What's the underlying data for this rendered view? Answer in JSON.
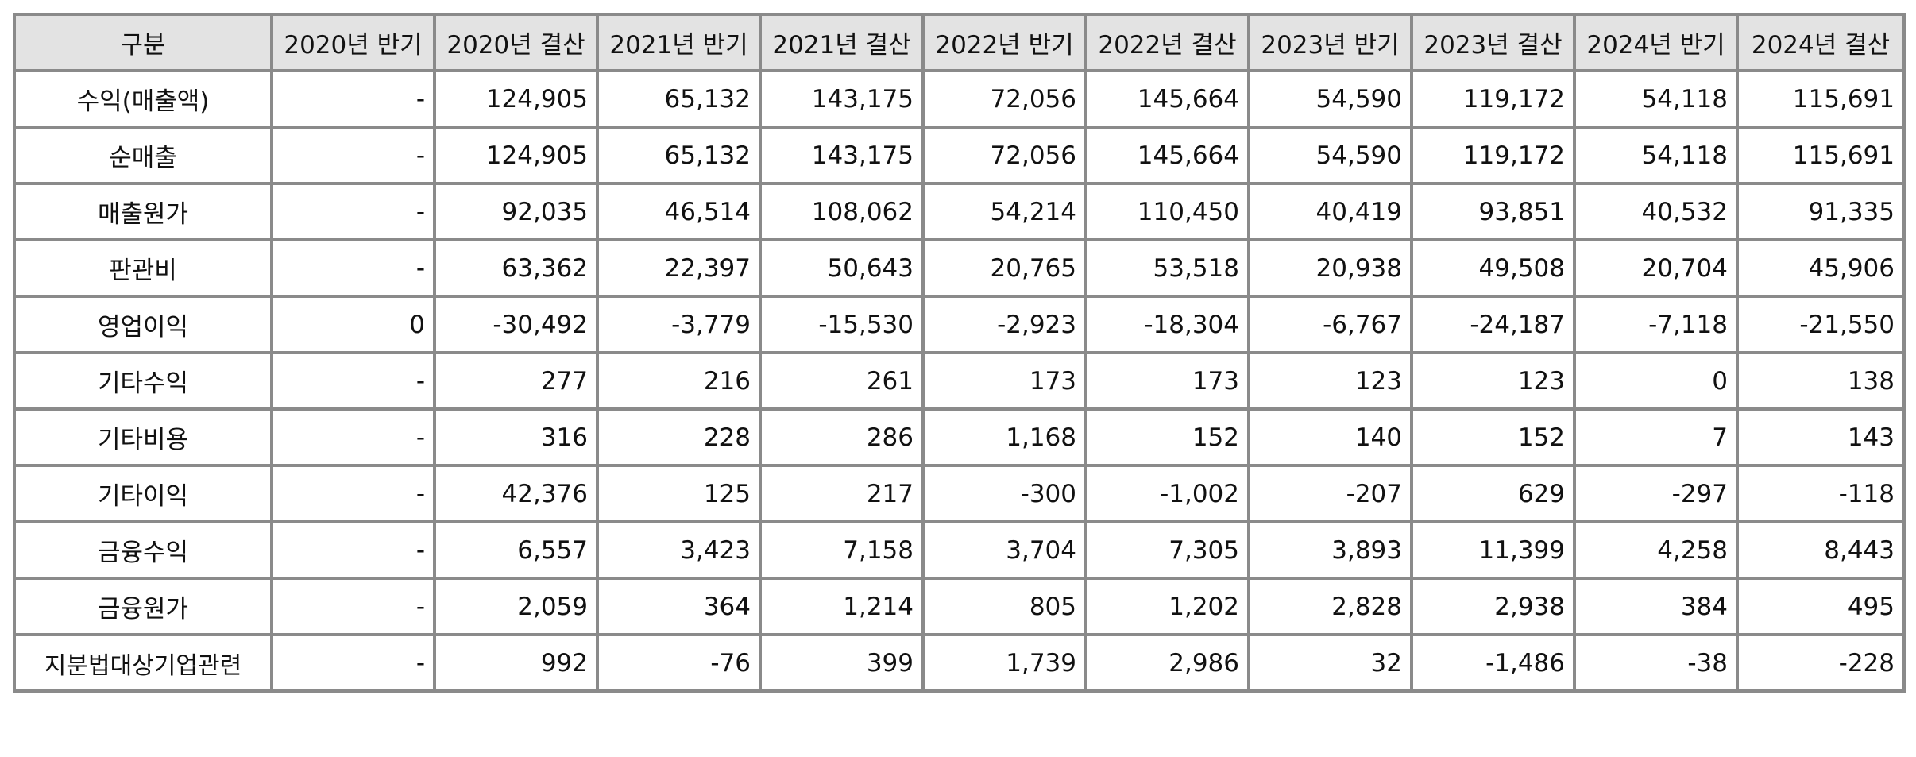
{
  "table": {
    "headers": [
      "구분",
      "2020년 반기",
      "2020년 결산",
      "2021년 반기",
      "2021년 결산",
      "2022년 반기",
      "2022년 결산",
      "2023년 반기",
      "2023년 결산",
      "2024년 반기",
      "2024년 결산"
    ],
    "rows": [
      {
        "label": "수익(매출액)",
        "values": [
          "-",
          "124,905",
          "65,132",
          "143,175",
          "72,056",
          "145,664",
          "54,590",
          "119,172",
          "54,118",
          "115,691"
        ]
      },
      {
        "label": "순매출",
        "values": [
          "-",
          "124,905",
          "65,132",
          "143,175",
          "72,056",
          "145,664",
          "54,590",
          "119,172",
          "54,118",
          "115,691"
        ]
      },
      {
        "label": "매출원가",
        "values": [
          "-",
          "92,035",
          "46,514",
          "108,062",
          "54,214",
          "110,450",
          "40,419",
          "93,851",
          "40,532",
          "91,335"
        ]
      },
      {
        "label": "판관비",
        "values": [
          "-",
          "63,362",
          "22,397",
          "50,643",
          "20,765",
          "53,518",
          "20,938",
          "49,508",
          "20,704",
          "45,906"
        ]
      },
      {
        "label": "영업이익",
        "values": [
          "0",
          "-30,492",
          "-3,779",
          "-15,530",
          "-2,923",
          "-18,304",
          "-6,767",
          "-24,187",
          "-7,118",
          "-21,550"
        ]
      },
      {
        "label": "기타수익",
        "values": [
          "-",
          "277",
          "216",
          "261",
          "173",
          "173",
          "123",
          "123",
          "0",
          "138"
        ]
      },
      {
        "label": "기타비용",
        "values": [
          "-",
          "316",
          "228",
          "286",
          "1,168",
          "152",
          "140",
          "152",
          "7",
          "143"
        ]
      },
      {
        "label": "기타이익",
        "values": [
          "-",
          "42,376",
          "125",
          "217",
          "-300",
          "-1,002",
          "-207",
          "629",
          "-297",
          "-118"
        ]
      },
      {
        "label": "금융수익",
        "values": [
          "-",
          "6,557",
          "3,423",
          "7,158",
          "3,704",
          "7,305",
          "3,893",
          "11,399",
          "4,258",
          "8,443"
        ]
      },
      {
        "label": "금융원가",
        "values": [
          "-",
          "2,059",
          "364",
          "1,214",
          "805",
          "1,202",
          "2,828",
          "2,938",
          "384",
          "495"
        ]
      },
      {
        "label": "지분법대상기업관련",
        "values": [
          "-",
          "992",
          "-76",
          "399",
          "1,739",
          "2,986",
          "32",
          "-1,486",
          "-38",
          "-228"
        ]
      }
    ]
  }
}
